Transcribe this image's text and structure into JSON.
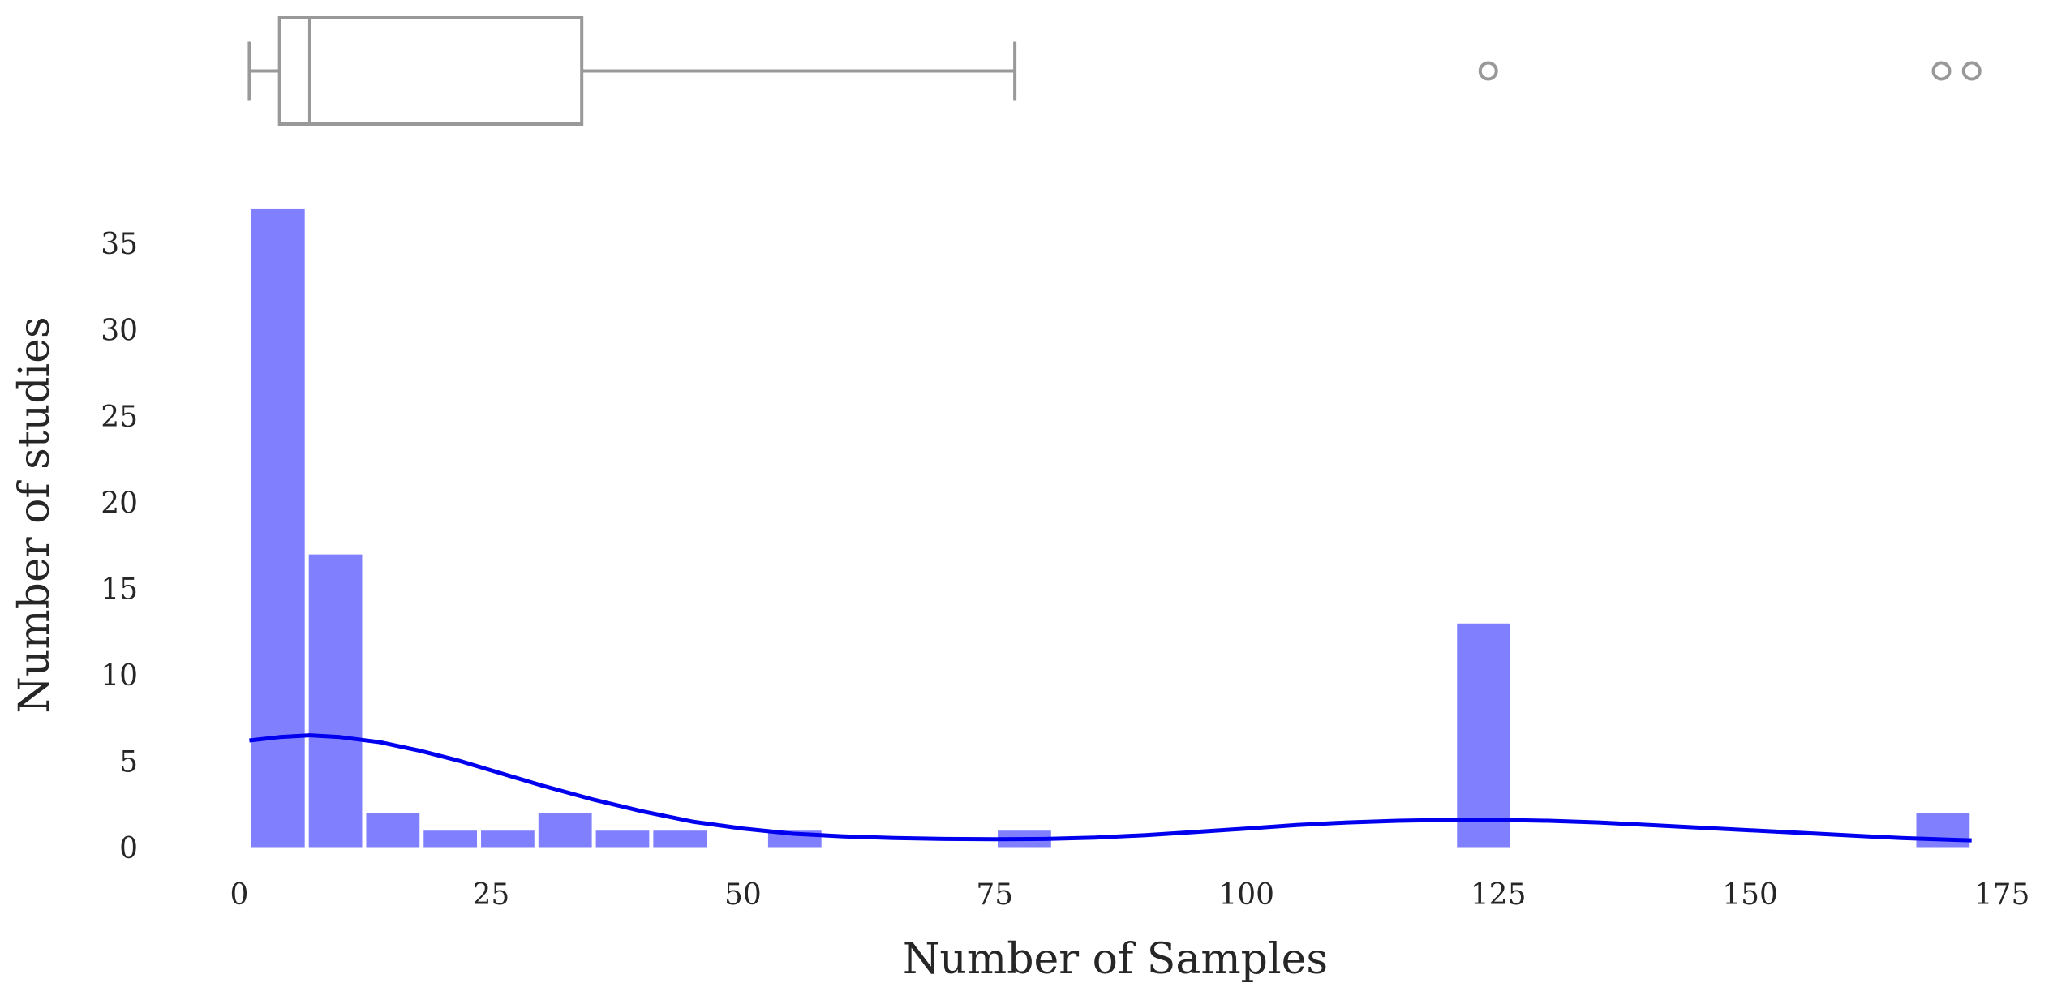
{
  "chart_data": [
    {
      "type": "box",
      "orientation": "horizontal",
      "stats": {
        "min": 1,
        "q1": 4,
        "median": 7,
        "q3": 34,
        "max": 77
      },
      "outliers": [
        124,
        169,
        172
      ],
      "color": "#999999"
    },
    {
      "type": "bar",
      "subtype": "histogram",
      "bins": [
        {
          "x0": 1.0,
          "x1": 6.7,
          "count": 37
        },
        {
          "x0": 6.7,
          "x1": 12.4,
          "count": 17
        },
        {
          "x0": 12.4,
          "x1": 18.1,
          "count": 2
        },
        {
          "x0": 18.1,
          "x1": 23.8,
          "count": 1
        },
        {
          "x0": 23.8,
          "x1": 29.5,
          "count": 1
        },
        {
          "x0": 29.5,
          "x1": 35.2,
          "count": 2
        },
        {
          "x0": 35.2,
          "x1": 40.9,
          "count": 1
        },
        {
          "x0": 40.9,
          "x1": 46.6,
          "count": 1
        },
        {
          "x0": 52.3,
          "x1": 58.0,
          "count": 1
        },
        {
          "x0": 75.1,
          "x1": 80.8,
          "count": 1
        },
        {
          "x0": 120.7,
          "x1": 126.4,
          "count": 13
        },
        {
          "x0": 166.3,
          "x1": 172.0,
          "count": 2
        }
      ],
      "kde": {
        "x": [
          1,
          4,
          7,
          10,
          14,
          18,
          22,
          26,
          30,
          35,
          40,
          45,
          50,
          55,
          60,
          65,
          70,
          75,
          80,
          85,
          90,
          95,
          100,
          105,
          110,
          115,
          120,
          125,
          130,
          135,
          140,
          145,
          150,
          155,
          160,
          165,
          170,
          172
        ],
        "y": [
          6.2,
          6.4,
          6.5,
          6.4,
          6.1,
          5.6,
          5.0,
          4.3,
          3.6,
          2.8,
          2.1,
          1.5,
          1.1,
          0.8,
          0.65,
          0.55,
          0.5,
          0.48,
          0.5,
          0.58,
          0.72,
          0.9,
          1.1,
          1.3,
          1.45,
          1.55,
          1.6,
          1.6,
          1.55,
          1.45,
          1.3,
          1.15,
          1.0,
          0.85,
          0.7,
          0.55,
          0.45,
          0.42
        ]
      },
      "bar_color": "#8080ff",
      "kde_color": "#0000ee",
      "xlabel": "Number of Samples",
      "ylabel": "Number of studies",
      "xlim": [
        0,
        175
      ],
      "ylim": [
        0,
        37
      ],
      "xticks": [
        0,
        25,
        50,
        75,
        100,
        125,
        150,
        175
      ],
      "yticks": [
        0,
        5,
        10,
        15,
        20,
        25,
        30,
        35
      ],
      "grid": false
    }
  ]
}
